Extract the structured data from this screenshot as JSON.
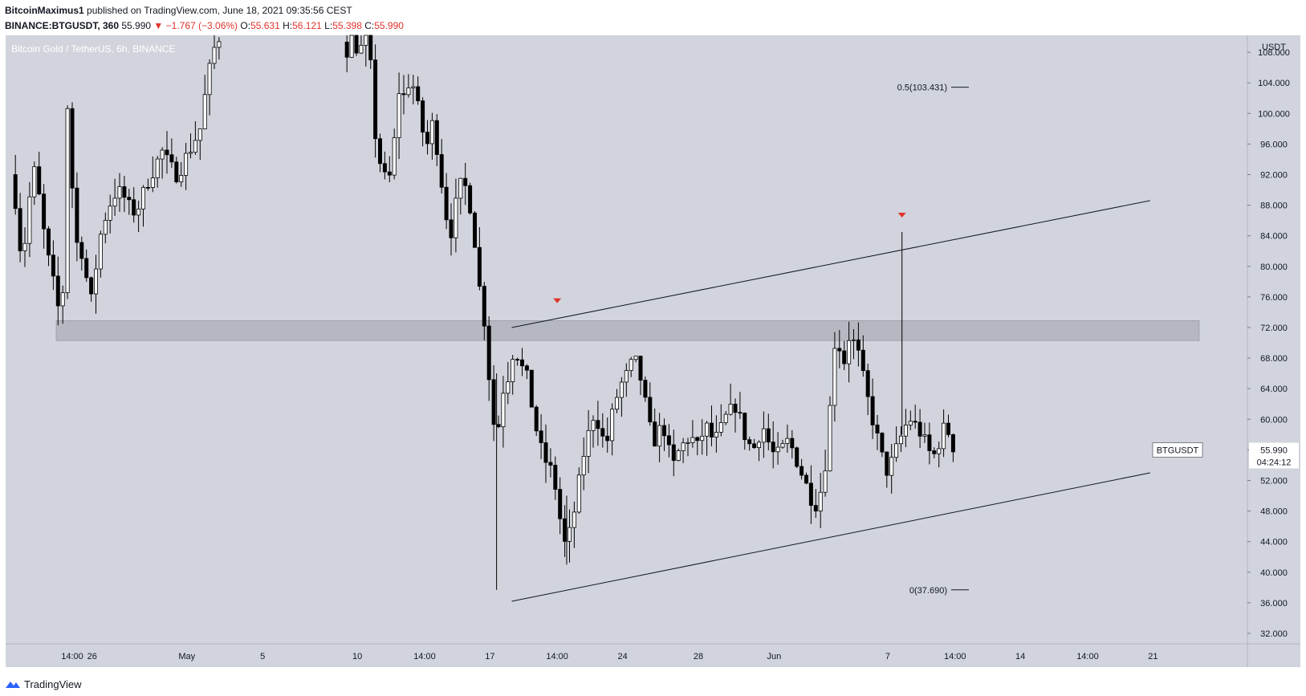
{
  "header": {
    "author": "BitcoinMaximus1",
    "published": "published on TradingView.com, June 18, 2021 09:35:56 CEST",
    "symbol": "BINANCE:BTGUSDT, 360",
    "last": "55.990",
    "change": "−1.767 (−3.06%)",
    "o_label": "O:",
    "o": "55.631",
    "h_label": "H:",
    "h": "56.121",
    "l_label": "L:",
    "l": "55.398",
    "c_label": "C:",
    "c": "55.990"
  },
  "chart_title": "Bitcoin Gold / TetherUS, 6h, BINANCE",
  "footer": {
    "brand": "TradingView"
  },
  "colors": {
    "background": "#d1d4dc",
    "up": "#ffffff",
    "down": "#000000",
    "arrow": "#e0332b",
    "zone": "#b2b5be"
  },
  "chart_data": {
    "type": "candlestick",
    "title": "Bitcoin Gold / TetherUS, 6h, BINANCE",
    "y_axis": {
      "unit": "USDT",
      "range": [
        30,
        110
      ],
      "ticks": [
        "32.000",
        "36.000",
        "40.000",
        "44.000",
        "48.000",
        "52.000",
        "56.000",
        "60.000",
        "64.000",
        "68.000",
        "72.000",
        "76.000",
        "80.000",
        "84.000",
        "88.000",
        "92.000",
        "96.000",
        "100.000",
        "104.000",
        "108.000"
      ]
    },
    "x_axis": {
      "ticks": [
        {
          "label": "14:00",
          "day": 0
        },
        {
          "label": "26",
          "day": 1.05
        },
        {
          "label": "May",
          "day": 6.05
        },
        {
          "label": "5",
          "day": 10.05
        },
        {
          "label": "10",
          "day": 15.05
        },
        {
          "label": "14:00",
          "day": 18.6
        },
        {
          "label": "17",
          "day": 22.05
        },
        {
          "label": "14:00",
          "day": 25.6
        },
        {
          "label": "24",
          "day": 29.05
        },
        {
          "label": "28",
          "day": 33.05
        },
        {
          "label": "Jun",
          "day": 37.05
        },
        {
          "label": "7",
          "day": 43.05
        },
        {
          "label": "14:00",
          "day": 46.6
        },
        {
          "label": "14",
          "day": 50.05
        },
        {
          "label": "14:00",
          "day": 53.6
        },
        {
          "label": "21",
          "day": 57.05
        }
      ]
    },
    "price_label": {
      "symbol": "BTGUSDT",
      "price": "55.990",
      "countdown": "04:24:12"
    },
    "fib_levels": [
      {
        "label": "0.5(103.431)",
        "value": 103.431
      },
      {
        "label": "0(37.690)",
        "value": 37.69
      }
    ],
    "resistance_zone": [
      70.3,
      72.9
    ],
    "channel": {
      "upper": {
        "from": {
          "day": 23.2,
          "price": 72.0
        },
        "to": {
          "day": 56.9,
          "price": 88.6
        }
      },
      "lower": {
        "from": {
          "day": 23.2,
          "price": 36.2
        },
        "to": {
          "day": 56.9,
          "price": 53.0
        }
      }
    },
    "markers": [
      {
        "day": 25.6,
        "price": 75.5,
        "shape": "down-triangle"
      },
      {
        "day": 43.8,
        "price": 86.7,
        "shape": "down-triangle"
      }
    ],
    "price_path": [
      {
        "day": -3.0,
        "price": 92
      },
      {
        "day": -2.7,
        "price": 88
      },
      {
        "day": -2.4,
        "price": 80
      },
      {
        "day": -2.0,
        "price": 89
      },
      {
        "day": -1.7,
        "price": 93
      },
      {
        "day": -1.4,
        "price": 87
      },
      {
        "day": -1.1,
        "price": 82
      },
      {
        "day": -0.6,
        "price": 76
      },
      {
        "day": -0.3,
        "price": 72
      },
      {
        "day": 0.0,
        "price": 101
      },
      {
        "day": 0.15,
        "price": 96
      },
      {
        "day": 0.4,
        "price": 82
      },
      {
        "day": 0.6,
        "price": 84
      },
      {
        "day": 0.9,
        "price": 80
      },
      {
        "day": 1.1,
        "price": 77
      },
      {
        "day": 1.3,
        "price": 75
      },
      {
        "day": 1.5,
        "price": 80
      },
      {
        "day": 1.8,
        "price": 85
      },
      {
        "day": 2.2,
        "price": 88
      },
      {
        "day": 2.6,
        "price": 90
      },
      {
        "day": 3.0,
        "price": 89
      },
      {
        "day": 3.4,
        "price": 87
      },
      {
        "day": 3.8,
        "price": 88
      },
      {
        "day": 4.2,
        "price": 91
      },
      {
        "day": 4.6,
        "price": 93
      },
      {
        "day": 5.0,
        "price": 95
      },
      {
        "day": 5.4,
        "price": 93
      },
      {
        "day": 5.8,
        "price": 92
      },
      {
        "day": 6.2,
        "price": 94
      },
      {
        "day": 6.6,
        "price": 96
      },
      {
        "day": 7.0,
        "price": 98
      },
      {
        "day": 7.3,
        "price": 103
      },
      {
        "day": 7.6,
        "price": 107
      },
      {
        "day": 7.9,
        "price": 110
      },
      {
        "day": 8.2,
        "price": 110
      },
      {
        "day": 14.4,
        "price": 110
      },
      {
        "day": 14.7,
        "price": 108
      },
      {
        "day": 15.0,
        "price": 110
      },
      {
        "day": 15.4,
        "price": 108
      },
      {
        "day": 15.8,
        "price": 110
      },
      {
        "day": 16.1,
        "price": 104
      },
      {
        "day": 16.3,
        "price": 95
      },
      {
        "day": 16.6,
        "price": 93
      },
      {
        "day": 16.9,
        "price": 90
      },
      {
        "day": 17.2,
        "price": 95
      },
      {
        "day": 17.5,
        "price": 103
      },
      {
        "day": 17.8,
        "price": 102
      },
      {
        "day": 18.1,
        "price": 105
      },
      {
        "day": 18.4,
        "price": 102
      },
      {
        "day": 18.7,
        "price": 98
      },
      {
        "day": 19.0,
        "price": 96
      },
      {
        "day": 19.3,
        "price": 99
      },
      {
        "day": 19.6,
        "price": 94
      },
      {
        "day": 19.9,
        "price": 88
      },
      {
        "day": 20.2,
        "price": 84
      },
      {
        "day": 20.5,
        "price": 88
      },
      {
        "day": 20.8,
        "price": 91
      },
      {
        "day": 21.1,
        "price": 90
      },
      {
        "day": 21.4,
        "price": 86
      },
      {
        "day": 21.7,
        "price": 78
      },
      {
        "day": 22.0,
        "price": 73
      },
      {
        "day": 22.2,
        "price": 67
      },
      {
        "day": 22.4,
        "price": 62
      },
      {
        "day": 22.6,
        "price": 57
      },
      {
        "day": 22.8,
        "price": 60
      },
      {
        "day": 23.0,
        "price": 64
      },
      {
        "day": 23.3,
        "price": 66
      },
      {
        "day": 23.6,
        "price": 70
      },
      {
        "day": 23.9,
        "price": 67
      },
      {
        "day": 24.2,
        "price": 66
      },
      {
        "day": 24.5,
        "price": 62
      },
      {
        "day": 24.8,
        "price": 58
      },
      {
        "day": 25.1,
        "price": 55
      },
      {
        "day": 25.4,
        "price": 54
      },
      {
        "day": 25.7,
        "price": 52
      },
      {
        "day": 26.0,
        "price": 47
      },
      {
        "day": 26.3,
        "price": 43
      },
      {
        "day": 26.6,
        "price": 46
      },
      {
        "day": 26.9,
        "price": 50
      },
      {
        "day": 27.2,
        "price": 55
      },
      {
        "day": 27.5,
        "price": 58
      },
      {
        "day": 27.8,
        "price": 61
      },
      {
        "day": 28.1,
        "price": 59
      },
      {
        "day": 28.4,
        "price": 56
      },
      {
        "day": 28.7,
        "price": 60
      },
      {
        "day": 29.0,
        "price": 63
      },
      {
        "day": 29.3,
        "price": 65
      },
      {
        "day": 29.6,
        "price": 66
      },
      {
        "day": 29.9,
        "price": 68
      },
      {
        "day": 30.2,
        "price": 66
      },
      {
        "day": 30.5,
        "price": 62
      },
      {
        "day": 30.8,
        "price": 58
      },
      {
        "day": 31.1,
        "price": 57
      },
      {
        "day": 31.4,
        "price": 60
      },
      {
        "day": 31.7,
        "price": 56
      },
      {
        "day": 32.0,
        "price": 54
      },
      {
        "day": 32.3,
        "price": 56
      },
      {
        "day": 32.6,
        "price": 57
      },
      {
        "day": 32.9,
        "price": 58
      },
      {
        "day": 33.2,
        "price": 56
      },
      {
        "day": 33.5,
        "price": 58
      },
      {
        "day": 33.8,
        "price": 59
      },
      {
        "day": 34.1,
        "price": 57
      },
      {
        "day": 34.4,
        "price": 58
      },
      {
        "day": 34.7,
        "price": 60
      },
      {
        "day": 35.0,
        "price": 61
      },
      {
        "day": 35.3,
        "price": 62
      },
      {
        "day": 35.6,
        "price": 59
      },
      {
        "day": 35.9,
        "price": 57
      },
      {
        "day": 36.2,
        "price": 56
      },
      {
        "day": 36.5,
        "price": 58
      },
      {
        "day": 36.8,
        "price": 59
      },
      {
        "day": 37.1,
        "price": 56
      },
      {
        "day": 37.4,
        "price": 55
      },
      {
        "day": 37.7,
        "price": 56
      },
      {
        "day": 38.0,
        "price": 57
      },
      {
        "day": 38.3,
        "price": 56
      },
      {
        "day": 38.6,
        "price": 54
      },
      {
        "day": 38.9,
        "price": 52
      },
      {
        "day": 39.2,
        "price": 50
      },
      {
        "day": 39.5,
        "price": 49
      },
      {
        "day": 39.8,
        "price": 51
      },
      {
        "day": 40.1,
        "price": 56
      },
      {
        "day": 40.4,
        "price": 67
      },
      {
        "day": 40.6,
        "price": 73
      },
      {
        "day": 40.9,
        "price": 66
      },
      {
        "day": 41.2,
        "price": 71
      },
      {
        "day": 41.5,
        "price": 70
      },
      {
        "day": 41.8,
        "price": 68
      },
      {
        "day": 42.1,
        "price": 64
      },
      {
        "day": 42.4,
        "price": 61
      },
      {
        "day": 42.7,
        "price": 58
      },
      {
        "day": 43.0,
        "price": 55
      },
      {
        "day": 43.3,
        "price": 53
      },
      {
        "day": 43.6,
        "price": 55
      },
      {
        "day": 43.9,
        "price": 57
      },
      {
        "day": 44.2,
        "price": 59
      },
      {
        "day": 44.5,
        "price": 60
      },
      {
        "day": 44.8,
        "price": 59
      },
      {
        "day": 45.1,
        "price": 58
      },
      {
        "day": 45.4,
        "price": 56
      },
      {
        "day": 45.7,
        "price": 55
      },
      {
        "day": 46.0,
        "price": 57
      },
      {
        "day": 46.3,
        "price": 59
      },
      {
        "day": 46.6,
        "price": 58
      },
      {
        "day": 46.8,
        "price": 56
      }
    ]
  }
}
